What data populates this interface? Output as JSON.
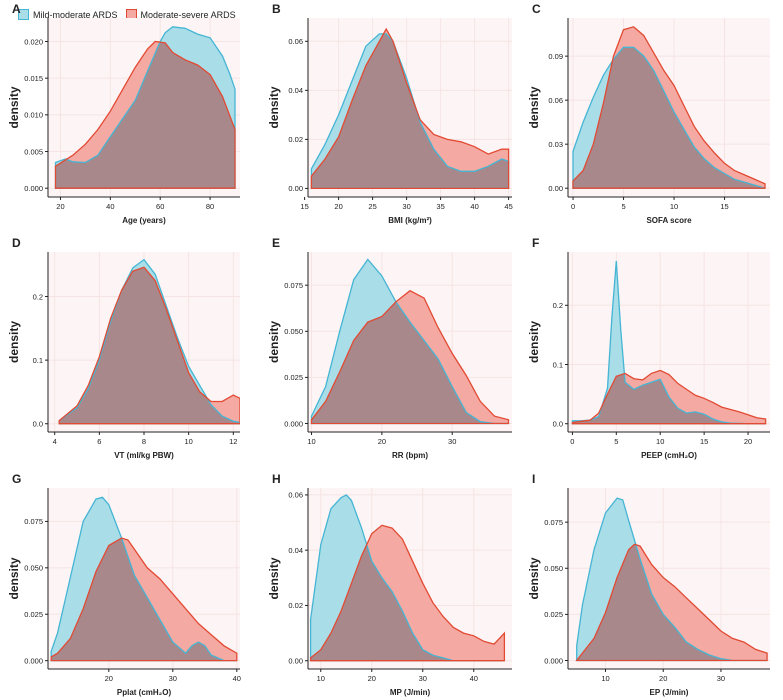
{
  "legend": {
    "series": [
      {
        "name": "Mild-moderate ARDS",
        "fill": "#a9dde8",
        "stroke": "#45b5d4"
      },
      {
        "name": "Moderate-severe ARDS",
        "fill": "#f4a9a2",
        "stroke": "#e24a33"
      }
    ]
  },
  "colors": {
    "panel_bg": "#fdf5f5",
    "grid": "#f6e4e4",
    "overlap_fill": "#a8888a",
    "axis": "#222222"
  },
  "chart_data": [
    {
      "panel": "A",
      "type": "area",
      "xlabel": "Age (years)",
      "ylabel": "density",
      "xlim": [
        15,
        92
      ],
      "ylim": [
        -0.0012,
        0.0232
      ],
      "xticks": [
        20,
        40,
        60,
        80
      ],
      "yticks": [
        0,
        0.005,
        0.01,
        0.015,
        0.02
      ],
      "ytick_labels": [
        "0.000",
        "0.005",
        "0.010",
        "0.015",
        "0.020"
      ],
      "series": [
        {
          "name": "Mild-moderate ARDS",
          "x": [
            18,
            22,
            25,
            30,
            35,
            40,
            45,
            50,
            55,
            60,
            62,
            65,
            70,
            75,
            80,
            85,
            88,
            90
          ],
          "y": [
            0.0035,
            0.004,
            0.0036,
            0.0035,
            0.0045,
            0.007,
            0.0095,
            0.012,
            0.016,
            0.02,
            0.0212,
            0.022,
            0.0218,
            0.021,
            0.0205,
            0.018,
            0.0155,
            0.0135
          ]
        },
        {
          "name": "Moderate-severe ARDS",
          "x": [
            18,
            25,
            30,
            35,
            40,
            45,
            50,
            55,
            58,
            62,
            65,
            70,
            75,
            80,
            85,
            90
          ],
          "y": [
            0.003,
            0.0045,
            0.006,
            0.008,
            0.0105,
            0.0135,
            0.0165,
            0.019,
            0.02,
            0.0198,
            0.0185,
            0.0175,
            0.0168,
            0.0155,
            0.0125,
            0.008
          ]
        }
      ]
    },
    {
      "panel": "B",
      "type": "area",
      "xlabel": "BMI (kg/m²)",
      "ylabel": "density",
      "xlim": [
        15.5,
        45.5
      ],
      "ylim": [
        -0.0035,
        0.0695
      ],
      "xticks": [
        15,
        20,
        25,
        30,
        35,
        40,
        45
      ],
      "yticks": [
        0,
        0.02,
        0.04,
        0.06
      ],
      "ytick_labels": [
        "0.00",
        "0.02",
        "0.04",
        "0.06"
      ],
      "series": [
        {
          "name": "Mild-moderate ARDS",
          "x": [
            16,
            18,
            20,
            22,
            24,
            26,
            27,
            28,
            30,
            32,
            34,
            36,
            38,
            40,
            42,
            44,
            45
          ],
          "y": [
            0.008,
            0.018,
            0.03,
            0.044,
            0.058,
            0.063,
            0.063,
            0.06,
            0.045,
            0.027,
            0.016,
            0.009,
            0.007,
            0.007,
            0.009,
            0.012,
            0.011
          ]
        },
        {
          "name": "Moderate-severe ARDS",
          "x": [
            16,
            18,
            20,
            22,
            24,
            26,
            27,
            28,
            30,
            32,
            34,
            36,
            38,
            40,
            42,
            44,
            45
          ],
          "y": [
            0.005,
            0.012,
            0.021,
            0.036,
            0.05,
            0.06,
            0.065,
            0.06,
            0.043,
            0.028,
            0.022,
            0.02,
            0.019,
            0.017,
            0.014,
            0.016,
            0.016
          ]
        }
      ]
    },
    {
      "panel": "C",
      "type": "area",
      "xlabel": "SOFA score",
      "ylabel": "density",
      "xlim": [
        -0.5,
        19.5
      ],
      "ylim": [
        -0.006,
        0.116
      ],
      "xticks": [
        0,
        5,
        10,
        15
      ],
      "yticks": [
        0,
        0.03,
        0.06,
        0.09
      ],
      "ytick_labels": [
        "0.00",
        "0.03",
        "0.06",
        "0.09"
      ],
      "series": [
        {
          "name": "Mild-moderate ARDS",
          "x": [
            0,
            1,
            2,
            3,
            4,
            5,
            6,
            7,
            8,
            9,
            10,
            11,
            12,
            13,
            14,
            15,
            16,
            17,
            18,
            19
          ],
          "y": [
            0.025,
            0.045,
            0.062,
            0.077,
            0.088,
            0.096,
            0.096,
            0.09,
            0.08,
            0.066,
            0.052,
            0.04,
            0.028,
            0.02,
            0.014,
            0.01,
            0.006,
            0.004,
            0.002,
            0.0
          ]
        },
        {
          "name": "Moderate-severe ARDS",
          "x": [
            0,
            1,
            2,
            3,
            4,
            5,
            6,
            7,
            8,
            9,
            10,
            11,
            12,
            13,
            14,
            15,
            16,
            17,
            18,
            19
          ],
          "y": [
            0.005,
            0.012,
            0.03,
            0.058,
            0.09,
            0.108,
            0.11,
            0.104,
            0.092,
            0.08,
            0.07,
            0.056,
            0.042,
            0.032,
            0.024,
            0.017,
            0.012,
            0.009,
            0.006,
            0.003
          ]
        }
      ]
    },
    {
      "panel": "D",
      "type": "area",
      "xlabel": "VT (ml/kg PBW)",
      "ylabel": "density",
      "xlim": [
        3.7,
        12.3
      ],
      "ylim": [
        -0.013,
        0.27
      ],
      "xticks": [
        4,
        6,
        8,
        10,
        12
      ],
      "yticks": [
        0,
        0.1,
        0.2
      ],
      "ytick_labels": [
        "0.0",
        "0.1",
        "0.2"
      ],
      "series": [
        {
          "name": "Mild-moderate ARDS",
          "x": [
            4.2,
            5,
            5.5,
            6,
            6.5,
            7,
            7.5,
            8,
            8.5,
            9,
            9.5,
            10,
            10.5,
            11,
            11.5,
            12,
            12.3
          ],
          "y": [
            0.005,
            0.025,
            0.055,
            0.1,
            0.16,
            0.21,
            0.245,
            0.258,
            0.235,
            0.185,
            0.135,
            0.09,
            0.06,
            0.03,
            0.012,
            0.004,
            0.002
          ]
        },
        {
          "name": "Moderate-severe ARDS",
          "x": [
            4.2,
            5,
            5.5,
            6,
            6.5,
            7,
            7.5,
            8,
            8.5,
            9,
            9.5,
            10,
            10.5,
            11,
            11.5,
            12,
            12.3
          ],
          "y": [
            0.005,
            0.028,
            0.06,
            0.105,
            0.165,
            0.21,
            0.24,
            0.246,
            0.225,
            0.18,
            0.13,
            0.08,
            0.05,
            0.035,
            0.035,
            0.045,
            0.04
          ]
        }
      ]
    },
    {
      "panel": "E",
      "type": "area",
      "xlabel": "RR (bpm)",
      "ylabel": "density",
      "xlim": [
        9.5,
        38.5
      ],
      "ylim": [
        -0.0046,
        0.093
      ],
      "xticks": [
        10,
        20,
        30
      ],
      "yticks": [
        0,
        0.025,
        0.05,
        0.075
      ],
      "ytick_labels": [
        "0.000",
        "0.025",
        "0.050",
        "0.075"
      ],
      "series": [
        {
          "name": "Mild-moderate ARDS",
          "x": [
            10,
            12,
            14,
            16,
            18,
            20,
            22,
            24,
            26,
            28,
            30,
            32,
            34,
            36,
            38
          ],
          "y": [
            0.004,
            0.02,
            0.05,
            0.078,
            0.089,
            0.08,
            0.066,
            0.055,
            0.045,
            0.035,
            0.02,
            0.006,
            0.001,
            0.0,
            0.0
          ]
        },
        {
          "name": "Moderate-severe ARDS",
          "x": [
            10,
            12,
            14,
            16,
            18,
            20,
            22,
            24,
            26,
            28,
            30,
            32,
            34,
            36,
            38
          ],
          "y": [
            0.002,
            0.012,
            0.028,
            0.045,
            0.055,
            0.058,
            0.066,
            0.072,
            0.068,
            0.052,
            0.038,
            0.026,
            0.012,
            0.004,
            0.002
          ]
        }
      ]
    },
    {
      "panel": "F",
      "type": "area",
      "xlabel": "PEEP (cmH₂O)",
      "ylabel": "density",
      "xlim": [
        -0.5,
        22.5
      ],
      "ylim": [
        -0.014,
        0.29
      ],
      "xticks": [
        0,
        5,
        10,
        15,
        20
      ],
      "yticks": [
        0,
        0.1,
        0.2
      ],
      "ytick_labels": [
        "0.0",
        "0.1",
        "0.2"
      ],
      "series": [
        {
          "name": "Mild-moderate ARDS",
          "x": [
            0,
            1,
            2,
            3,
            4,
            4.5,
            5,
            5.5,
            6,
            7,
            8,
            9,
            10,
            11,
            12,
            13,
            14,
            15,
            16,
            17,
            18,
            20,
            22
          ],
          "y": [
            0.005,
            0.005,
            0.006,
            0.012,
            0.06,
            0.18,
            0.275,
            0.16,
            0.07,
            0.058,
            0.065,
            0.07,
            0.075,
            0.045,
            0.026,
            0.018,
            0.02,
            0.016,
            0.008,
            0.003,
            0.001,
            0.0,
            0.0
          ]
        },
        {
          "name": "Moderate-severe ARDS",
          "x": [
            0,
            1,
            2,
            3,
            4,
            5,
            6,
            7,
            8,
            9,
            10,
            11,
            12,
            13,
            14,
            15,
            16,
            17,
            18,
            19,
            20,
            21,
            22
          ],
          "y": [
            0.002,
            0.004,
            0.006,
            0.018,
            0.05,
            0.08,
            0.085,
            0.076,
            0.074,
            0.085,
            0.09,
            0.083,
            0.068,
            0.058,
            0.048,
            0.043,
            0.036,
            0.028,
            0.024,
            0.02,
            0.015,
            0.01,
            0.008
          ]
        }
      ]
    },
    {
      "panel": "G",
      "type": "area",
      "xlabel": "Pplat (cmH₂O)",
      "ylabel": "density",
      "xlim": [
        10.5,
        40.5
      ],
      "ylim": [
        -0.0045,
        0.093
      ],
      "xticks": [
        20,
        30,
        40
      ],
      "yticks": [
        0,
        0.025,
        0.05,
        0.075
      ],
      "ytick_labels": [
        "0.000",
        "0.025",
        "0.050",
        "0.075"
      ],
      "series": [
        {
          "name": "Mild-moderate ARDS",
          "x": [
            11,
            12,
            14,
            16,
            18,
            19,
            20,
            22,
            24,
            26,
            28,
            30,
            32,
            33,
            34,
            35,
            36,
            38,
            40
          ],
          "y": [
            0.005,
            0.015,
            0.045,
            0.075,
            0.087,
            0.088,
            0.084,
            0.066,
            0.046,
            0.034,
            0.022,
            0.01,
            0.004,
            0.008,
            0.01,
            0.008,
            0.003,
            0.0,
            0.0
          ]
        },
        {
          "name": "Moderate-severe ARDS",
          "x": [
            11,
            12,
            14,
            16,
            18,
            20,
            22,
            23,
            24,
            26,
            28,
            30,
            32,
            34,
            36,
            38,
            40
          ],
          "y": [
            0.002,
            0.004,
            0.012,
            0.028,
            0.048,
            0.062,
            0.066,
            0.065,
            0.06,
            0.05,
            0.044,
            0.036,
            0.028,
            0.02,
            0.014,
            0.008,
            0.004
          ]
        }
      ]
    },
    {
      "panel": "H",
      "type": "area",
      "xlabel": "MP (J/min)",
      "ylabel": "density",
      "xlim": [
        7.5,
        47.5
      ],
      "ylim": [
        -0.003,
        0.0625
      ],
      "xticks": [
        10,
        20,
        30,
        40
      ],
      "yticks": [
        0,
        0.02,
        0.04,
        0.06
      ],
      "ytick_labels": [
        "0.00",
        "0.02",
        "0.04",
        "0.06"
      ],
      "series": [
        {
          "name": "Mild-moderate ARDS",
          "x": [
            8,
            10,
            12,
            14,
            15,
            16,
            18,
            20,
            22,
            24,
            26,
            28,
            30,
            32,
            34,
            36,
            38,
            40,
            42,
            44,
            46
          ],
          "y": [
            0.015,
            0.042,
            0.055,
            0.059,
            0.06,
            0.058,
            0.048,
            0.036,
            0.03,
            0.025,
            0.018,
            0.01,
            0.004,
            0.002,
            0.001,
            0.0,
            0.0,
            0.0,
            0.0,
            0.0,
            0.0
          ]
        },
        {
          "name": "Moderate-severe ARDS",
          "x": [
            8,
            10,
            12,
            14,
            16,
            18,
            20,
            22,
            24,
            26,
            28,
            30,
            32,
            34,
            36,
            38,
            40,
            42,
            44,
            46
          ],
          "y": [
            0.001,
            0.004,
            0.01,
            0.018,
            0.028,
            0.038,
            0.046,
            0.049,
            0.048,
            0.044,
            0.036,
            0.028,
            0.021,
            0.016,
            0.012,
            0.01,
            0.009,
            0.007,
            0.006,
            0.01
          ]
        }
      ]
    },
    {
      "panel": "I",
      "type": "area",
      "xlabel": "EP (J/min)",
      "ylabel": "density",
      "xlim": [
        3.5,
        38.5
      ],
      "ylim": [
        -0.0046,
        0.0935
      ],
      "xticks": [
        10,
        20,
        30
      ],
      "yticks": [
        0,
        0.025,
        0.05,
        0.075
      ],
      "ytick_labels": [
        "0.000",
        "0.025",
        "0.050",
        "0.075"
      ],
      "series": [
        {
          "name": "Mild-moderate ARDS",
          "x": [
            5,
            6,
            8,
            10,
            12,
            13,
            14,
            16,
            18,
            20,
            22,
            24,
            26,
            28,
            30,
            32,
            34,
            36,
            38
          ],
          "y": [
            0.008,
            0.03,
            0.06,
            0.08,
            0.088,
            0.087,
            0.076,
            0.055,
            0.036,
            0.025,
            0.018,
            0.01,
            0.006,
            0.003,
            0.001,
            0.0,
            0.0,
            0.0,
            0.0
          ]
        },
        {
          "name": "Moderate-severe ARDS",
          "x": [
            5,
            6,
            8,
            10,
            12,
            14,
            15,
            16,
            18,
            20,
            22,
            24,
            26,
            28,
            30,
            32,
            34,
            36,
            38
          ],
          "y": [
            0.0,
            0.004,
            0.012,
            0.026,
            0.045,
            0.06,
            0.063,
            0.062,
            0.052,
            0.045,
            0.04,
            0.034,
            0.028,
            0.022,
            0.016,
            0.012,
            0.01,
            0.006,
            0.004
          ]
        }
      ]
    }
  ]
}
